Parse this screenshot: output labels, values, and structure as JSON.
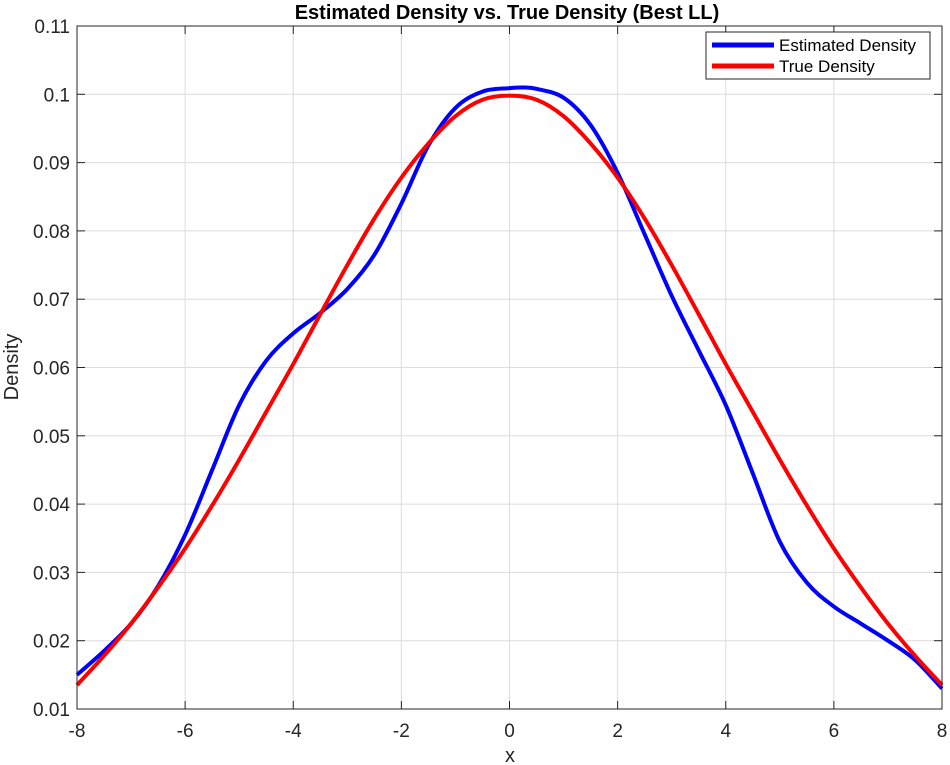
{
  "chart_data": {
    "type": "line",
    "title": "Estimated Density vs. True Density (Best LL)",
    "xlabel": "x",
    "ylabel": "Density",
    "xlim": [
      -8,
      8
    ],
    "ylim": [
      0.01,
      0.11
    ],
    "xticks": [
      -8,
      -6,
      -4,
      -2,
      0,
      2,
      4,
      6,
      8
    ],
    "yticks": [
      0.01,
      0.02,
      0.03,
      0.04,
      0.05,
      0.06,
      0.07,
      0.08,
      0.09,
      0.1,
      0.11
    ],
    "xtick_labels": [
      "-8",
      "-6",
      "-4",
      "-2",
      "0",
      "2",
      "4",
      "6",
      "8"
    ],
    "ytick_labels": [
      "0.01",
      "0.02",
      "0.03",
      "0.04",
      "0.05",
      "0.06",
      "0.07",
      "0.08",
      "0.09",
      "0.1",
      "0.11"
    ],
    "grid": true,
    "legend_position": "top-right",
    "series": [
      {
        "name": "Estimated Density",
        "color": "#0000ff",
        "x": [
          -8,
          -7.5,
          -7,
          -6.5,
          -6,
          -5.5,
          -5,
          -4.5,
          -4,
          -3.5,
          -3,
          -2.5,
          -2,
          -1.5,
          -1,
          -0.5,
          0,
          0.25,
          0.5,
          1,
          1.5,
          2,
          2.5,
          3,
          3.5,
          4,
          4.5,
          5,
          5.5,
          6,
          6.5,
          7,
          7.5,
          8
        ],
        "y": [
          0.015,
          0.0185,
          0.0225,
          0.028,
          0.0355,
          0.045,
          0.0545,
          0.061,
          0.065,
          0.068,
          0.0715,
          0.0765,
          0.084,
          0.0925,
          0.098,
          0.1004,
          0.1009,
          0.101,
          0.1008,
          0.0995,
          0.0955,
          0.0885,
          0.0795,
          0.0705,
          0.0625,
          0.0545,
          0.0445,
          0.0345,
          0.0285,
          0.025,
          0.0225,
          0.02,
          0.0172,
          0.013
        ]
      },
      {
        "name": "True Density",
        "color": "#ff0000",
        "x": [
          -8,
          -7.5,
          -7,
          -6.5,
          -6,
          -5.5,
          -5,
          -4.5,
          -4,
          -3.5,
          -3,
          -2.5,
          -2,
          -1.5,
          -1,
          -0.5,
          0,
          0.5,
          1,
          1.5,
          2,
          2.5,
          3,
          3.5,
          4,
          4.5,
          5,
          5.5,
          6,
          6.5,
          7,
          7.5,
          8
        ],
        "y": [
          0.0135,
          0.0178,
          0.0225,
          0.0278,
          0.0335,
          0.0398,
          0.0465,
          0.0535,
          0.0605,
          0.0678,
          0.075,
          0.0818,
          0.0878,
          0.0928,
          0.0968,
          0.0992,
          0.0998,
          0.0992,
          0.0968,
          0.0928,
          0.0878,
          0.0818,
          0.075,
          0.0678,
          0.0605,
          0.0535,
          0.0465,
          0.0398,
          0.0335,
          0.0278,
          0.0225,
          0.0178,
          0.0135
        ]
      }
    ]
  }
}
